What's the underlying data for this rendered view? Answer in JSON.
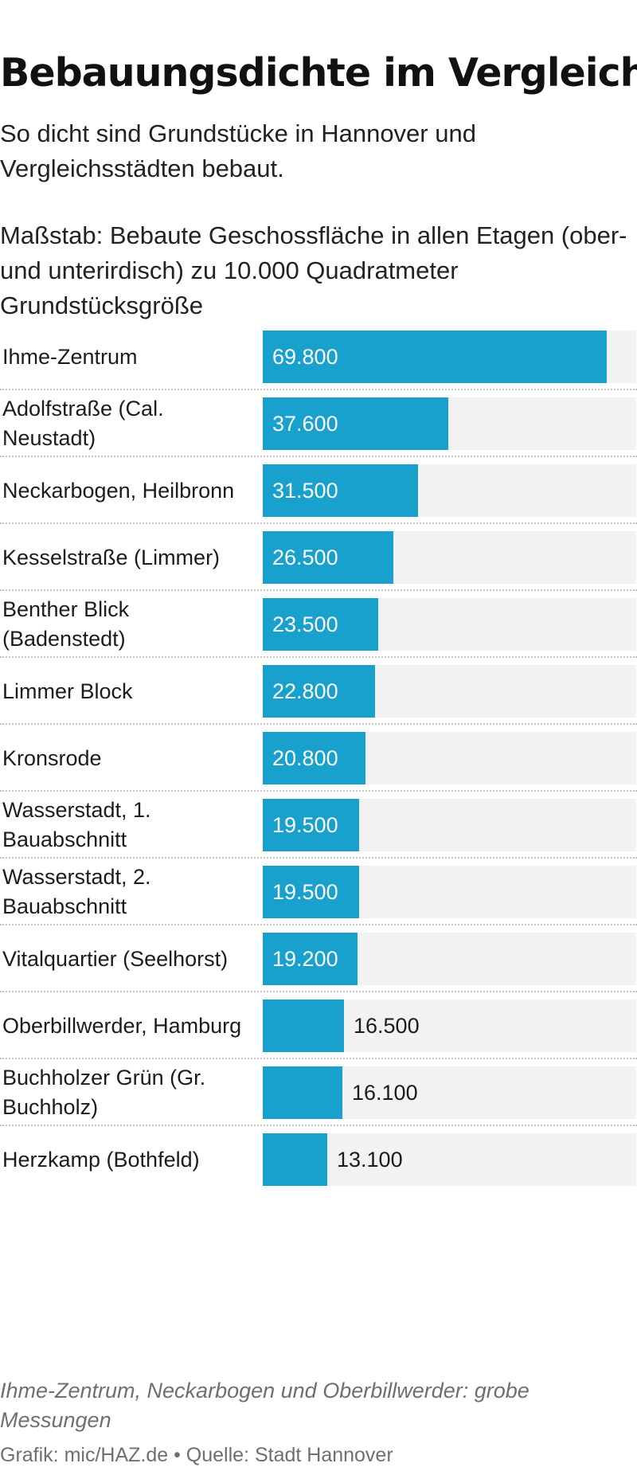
{
  "title": "Bebauungsdichte im Vergleich",
  "subtitle": "So dicht sind Grundstücke in Hannover und Vergleichsstädten bebaut.",
  "scale_note": "Maßstab: Bebaute Geschossfläche in allen Etagen (ober- und unterirdisch) zu 10.000 Quadratmeter Grundstücksgröße",
  "footnote": "Ihme-Zentrum, Neckarbogen und Oberbillwerder: grobe Messungen",
  "credits": "Grafik: mic/HAZ.de • Quelle: Stadt Hannover",
  "colors": {
    "bar": "#18a1cd",
    "track": "#f2f2f2",
    "label_inside": "#ffffff",
    "label_outside": "#1c1c1c"
  },
  "chart_data": {
    "type": "bar",
    "orientation": "horizontal",
    "categories": [
      "Ihme-Zentrum",
      "Adolfstraße (Cal. Neustadt)",
      "Neckarbogen, Heilbronn",
      "Kesselstraße (Limmer)",
      "Benther Blick (Badenstedt)",
      "Limmer Block",
      "Kronsrode",
      "Wasserstadt, 1. Bauabschnitt",
      "Wasserstadt, 2. Bauabschnitt",
      "Vitalquartier (Seelhorst)",
      "Oberbillwerder, Hamburg",
      "Buchholzer Grün (Gr. Buchholz)",
      "Herzkamp (Bothfeld)"
    ],
    "values": [
      69800,
      37600,
      31500,
      26500,
      23500,
      22800,
      20800,
      19500,
      19500,
      19200,
      16500,
      16100,
      13100
    ],
    "value_labels": [
      "69.800",
      "37.600",
      "31.500",
      "26.500",
      "23.500",
      "22.800",
      "20.800",
      "19.500",
      "19.500",
      "19.200",
      "16.500",
      "16.100",
      "13.100"
    ],
    "xlim": [
      0,
      75800
    ],
    "grid": false,
    "legend": "none"
  }
}
